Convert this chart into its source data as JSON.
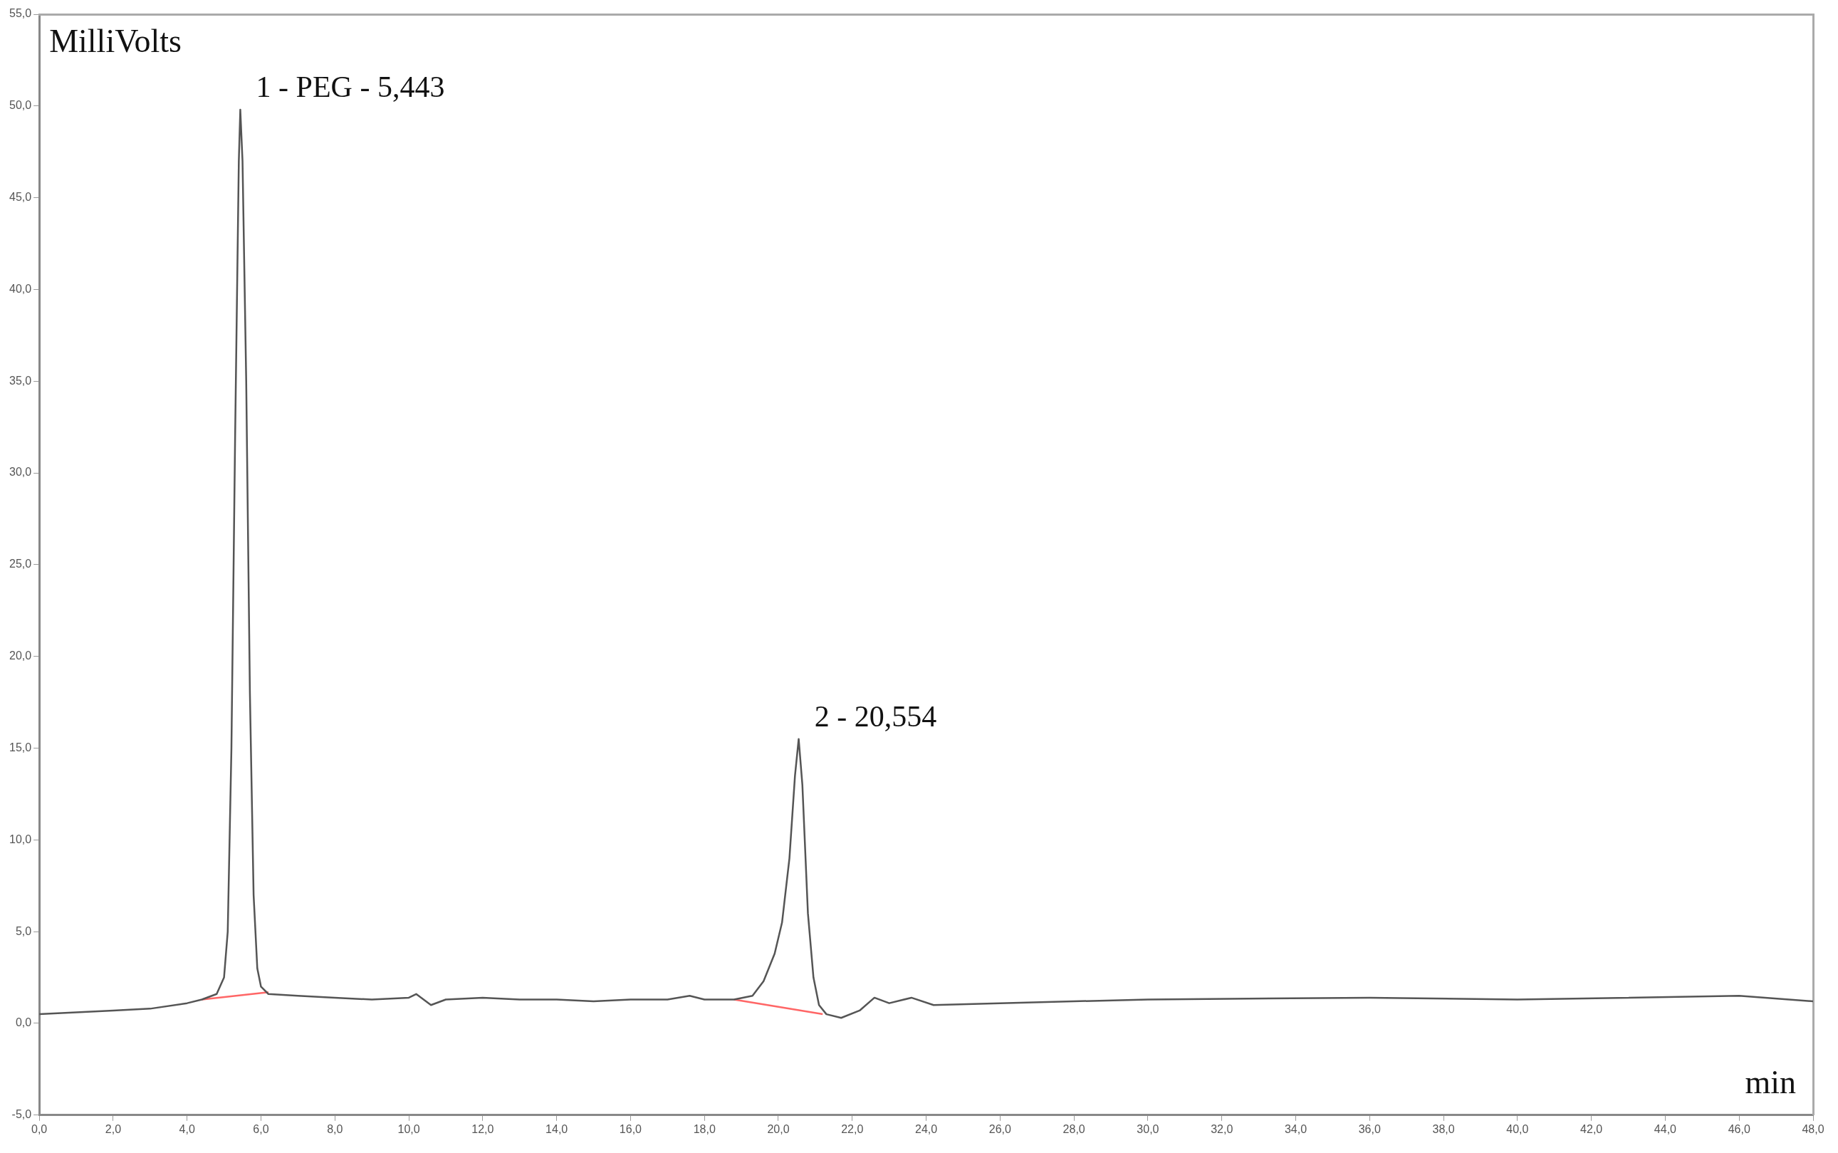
{
  "chart_data": {
    "type": "line",
    "xlabel": "min",
    "ylabel": "MilliVolts",
    "xlim": [
      0,
      48
    ],
    "ylim": [
      -5,
      55
    ],
    "xticks": [
      {
        "value": 0,
        "label": "0,0"
      },
      {
        "value": 2,
        "label": "2,0"
      },
      {
        "value": 4,
        "label": "4,0"
      },
      {
        "value": 6,
        "label": "6,0"
      },
      {
        "value": 8,
        "label": "8,0"
      },
      {
        "value": 10,
        "label": "10,0"
      },
      {
        "value": 12,
        "label": "12,0"
      },
      {
        "value": 14,
        "label": "14,0"
      },
      {
        "value": 16,
        "label": "16,0"
      },
      {
        "value": 18,
        "label": "18,0"
      },
      {
        "value": 20,
        "label": "20,0"
      },
      {
        "value": 22,
        "label": "22,0"
      },
      {
        "value": 24,
        "label": "24,0"
      },
      {
        "value": 26,
        "label": "26,0"
      },
      {
        "value": 28,
        "label": "28,0"
      },
      {
        "value": 30,
        "label": "30,0"
      },
      {
        "value": 32,
        "label": "32,0"
      },
      {
        "value": 34,
        "label": "34,0"
      },
      {
        "value": 36,
        "label": "36,0"
      },
      {
        "value": 38,
        "label": "38,0"
      },
      {
        "value": 40,
        "label": "40,0"
      },
      {
        "value": 42,
        "label": "42,0"
      },
      {
        "value": 44,
        "label": "44,0"
      },
      {
        "value": 46,
        "label": "46,0"
      },
      {
        "value": 48,
        "label": "48,0"
      }
    ],
    "yticks": [
      {
        "value": -5,
        "label": "-5,0"
      },
      {
        "value": 0,
        "label": "0,0"
      },
      {
        "value": 5,
        "label": "5,0"
      },
      {
        "value": 10,
        "label": "10,0"
      },
      {
        "value": 15,
        "label": "15,0"
      },
      {
        "value": 20,
        "label": "20,0"
      },
      {
        "value": 25,
        "label": "25,0"
      },
      {
        "value": 30,
        "label": "30,0"
      },
      {
        "value": 35,
        "label": "35,0"
      },
      {
        "value": 40,
        "label": "40,0"
      },
      {
        "value": 45,
        "label": "45,0"
      },
      {
        "value": 50,
        "label": "50,0"
      },
      {
        "value": 55,
        "label": "55,0"
      }
    ],
    "grid": false,
    "legend": false,
    "marker": "none",
    "line_style": "solid",
    "annotations": [
      {
        "text": "1 - PEG - 5,443",
        "x": 5.443,
        "y": 49.8
      },
      {
        "text": "2 - 20,554",
        "x": 20.554,
        "y": 15.5
      }
    ],
    "series": [
      {
        "color": "#555555",
        "x": [
          0,
          1,
          2,
          3,
          4,
          4.4,
          4.8,
          5.0,
          5.1,
          5.2,
          5.3,
          5.4,
          5.44,
          5.5,
          5.6,
          5.7,
          5.8,
          5.9,
          6.0,
          6.2,
          7,
          8,
          9,
          10,
          10.2,
          10.4,
          10.6,
          11,
          12,
          13,
          14,
          15,
          16,
          17,
          17.6,
          18,
          18.8,
          19.3,
          19.6,
          19.9,
          20.1,
          20.3,
          20.45,
          20.55,
          20.65,
          20.8,
          20.95,
          21.1,
          21.3,
          21.7,
          22.2,
          22.6,
          23.0,
          23.6,
          24.2,
          26,
          30,
          36,
          40,
          46,
          48
        ],
        "values": [
          0.5,
          0.6,
          0.7,
          0.8,
          1.1,
          1.3,
          1.6,
          2.5,
          5,
          15,
          32,
          47,
          49.8,
          47,
          35,
          18,
          7,
          3,
          2,
          1.6,
          1.5,
          1.4,
          1.3,
          1.4,
          1.6,
          1.3,
          1.0,
          1.3,
          1.4,
          1.3,
          1.3,
          1.2,
          1.3,
          1.3,
          1.5,
          1.3,
          1.3,
          1.5,
          2.3,
          3.8,
          5.5,
          9,
          13.5,
          15.5,
          13,
          6,
          2.5,
          1.0,
          0.5,
          0.3,
          0.7,
          1.4,
          1.1,
          1.4,
          1.0,
          1.1,
          1.3,
          1.4,
          1.3,
          1.5,
          1.2
        ]
      },
      {
        "color": "#ff6666",
        "x": [
          4.4,
          6.2
        ],
        "values": [
          1.3,
          1.7
        ]
      },
      {
        "color": "#ff6666",
        "x": [
          18.8,
          21.2
        ],
        "values": [
          1.3,
          0.5
        ]
      }
    ]
  }
}
